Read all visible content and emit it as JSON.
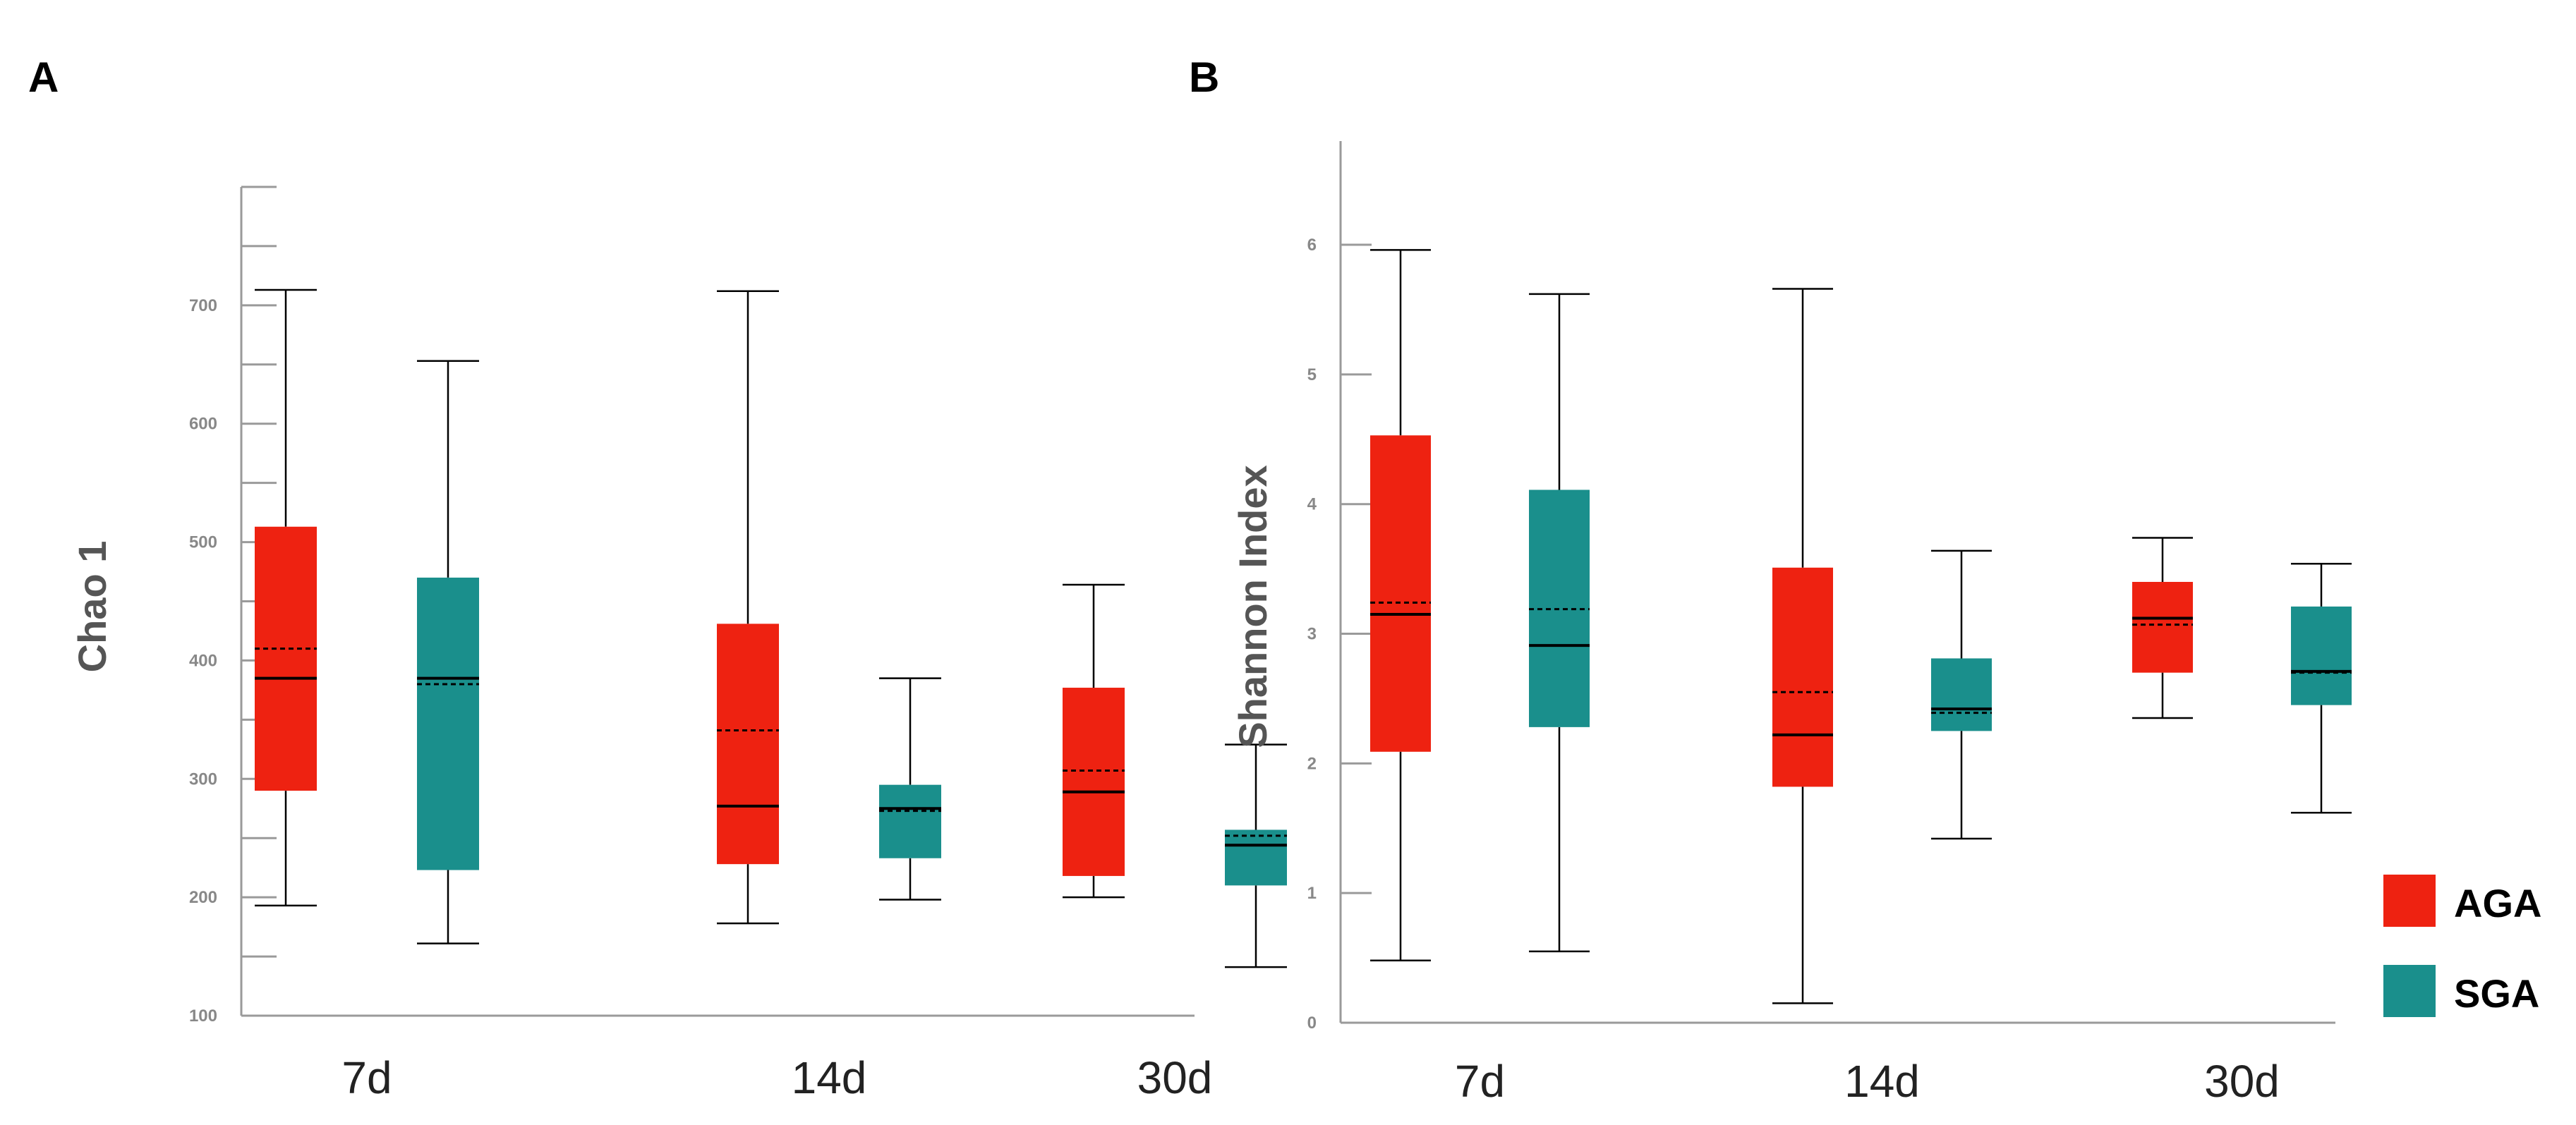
{
  "chart_data": [
    {
      "type": "box",
      "panel": "A",
      "ylabel": "Chao 1",
      "ylim": [
        100,
        800
      ],
      "yticks": [
        100,
        200,
        300,
        400,
        500,
        600,
        700
      ],
      "categories": [
        "7d",
        "14d",
        "30d"
      ],
      "series": [
        {
          "name": "AGA",
          "color": "#ee2211",
          "boxes": [
            {
              "category": "7d",
              "min": 193,
              "q1": 290,
              "median": 385,
              "mean": 410,
              "q3": 513,
              "max": 713
            },
            {
              "category": "14d",
              "min": 178,
              "q1": 228,
              "median": 277,
              "mean": 341,
              "q3": 431,
              "max": 712
            },
            {
              "category": "30d",
              "min": 200,
              "q1": 218,
              "median": 289,
              "mean": 307,
              "q3": 377,
              "max": 464
            }
          ]
        },
        {
          "name": "SGA",
          "color": "#1a8f8c",
          "boxes": [
            {
              "category": "7d",
              "min": 161,
              "q1": 223,
              "median": 385,
              "mean": 380,
              "q3": 470,
              "max": 653
            },
            {
              "category": "14d",
              "min": 198,
              "q1": 233,
              "median": 275,
              "mean": 273,
              "q3": 295,
              "max": 385
            },
            {
              "category": "30d",
              "min": 141,
              "q1": 210,
              "median": 244,
              "mean": 252,
              "q3": 257,
              "max": 329
            }
          ]
        }
      ]
    },
    {
      "type": "box",
      "panel": "B",
      "ylabel": "Shannon Index",
      "ylim": [
        0,
        6.8
      ],
      "yticks": [
        0,
        1,
        2,
        3,
        4,
        5,
        6
      ],
      "categories": [
        "7d",
        "14d",
        "30d"
      ],
      "series": [
        {
          "name": "AGA",
          "color": "#ee2211",
          "boxes": [
            {
              "category": "7d",
              "min": 0.48,
              "q1": 2.09,
              "median": 3.15,
              "mean": 3.24,
              "q3": 4.53,
              "max": 5.96
            },
            {
              "category": "14d",
              "min": 0.15,
              "q1": 1.82,
              "median": 2.22,
              "mean": 2.55,
              "q3": 3.51,
              "max": 5.66
            },
            {
              "category": "30d",
              "min": 2.35,
              "q1": 2.7,
              "median": 3.12,
              "mean": 3.07,
              "q3": 3.4,
              "max": 3.74
            }
          ]
        },
        {
          "name": "SGA",
          "color": "#1a8f8c",
          "boxes": [
            {
              "category": "7d",
              "min": 0.55,
              "q1": 2.28,
              "median": 2.91,
              "mean": 3.19,
              "q3": 4.11,
              "max": 5.62
            },
            {
              "category": "14d",
              "min": 1.42,
              "q1": 2.25,
              "median": 2.42,
              "mean": 2.39,
              "q3": 2.81,
              "max": 3.64
            },
            {
              "category": "30d",
              "min": 1.62,
              "q1": 2.45,
              "median": 2.71,
              "mean": 2.7,
              "q3": 3.21,
              "max": 3.54
            }
          ]
        }
      ]
    }
  ],
  "legend": {
    "position": "bottom-right",
    "items": [
      {
        "label": "AGA",
        "color": "#ee2211"
      },
      {
        "label": "SGA",
        "color": "#1a8f8c"
      }
    ]
  }
}
